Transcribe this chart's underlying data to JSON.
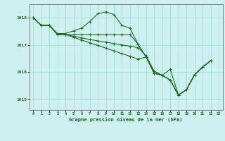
{
  "title": "Graphe pression niveau de la mer (hPa)",
  "background_color": "#cff0f0",
  "grid_color": "#99d9d9",
  "line_color": "#1a6b1a",
  "xlim": [
    -0.5,
    23.5
  ],
  "ylim": [
    1014.6,
    1018.5
  ],
  "yticks": [
    1015,
    1016,
    1017,
    1018
  ],
  "xticks": [
    0,
    1,
    2,
    3,
    4,
    5,
    6,
    7,
    8,
    9,
    10,
    11,
    12,
    13,
    14,
    15,
    16,
    17,
    18,
    19,
    20,
    21,
    22,
    23
  ],
  "xlabel": "Graphe pression niveau de la mer (hPa)",
  "s1_x": [
    0,
    1,
    2,
    3,
    4,
    5,
    6,
    7,
    8,
    9,
    10,
    11,
    12,
    13,
    14,
    15,
    16,
    17,
    18,
    19,
    20,
    21,
    22
  ],
  "s1_y": [
    1018.0,
    1017.72,
    1017.72,
    1017.42,
    1017.42,
    1017.52,
    1017.62,
    1017.86,
    1018.15,
    1018.22,
    1018.12,
    1017.72,
    1017.62,
    1017.02,
    1016.55,
    1015.95,
    1015.88,
    1016.1,
    1015.15,
    1015.35,
    1015.9,
    1016.18,
    1016.42
  ],
  "s2_x": [
    0,
    1,
    2,
    3,
    4,
    5,
    6,
    7,
    8,
    9,
    10,
    11,
    12,
    13,
    14,
    15,
    16,
    17,
    18,
    19,
    20,
    21,
    22
  ],
  "s2_y": [
    1018.0,
    1017.72,
    1017.72,
    1017.38,
    1017.38,
    1017.38,
    1017.38,
    1017.38,
    1017.38,
    1017.38,
    1017.38,
    1017.38,
    1017.38,
    1017.02,
    1016.55,
    1015.95,
    1015.88,
    1015.7,
    1015.15,
    1015.35,
    1015.9,
    1016.18,
    1016.42
  ],
  "s3_x": [
    0,
    1,
    2,
    3,
    4,
    5,
    6,
    7,
    8,
    9,
    10,
    11,
    12,
    13,
    14,
    15,
    16,
    17,
    18,
    19,
    20,
    21,
    22
  ],
  "s3_y": [
    1018.0,
    1017.72,
    1017.72,
    1017.38,
    1017.38,
    1017.32,
    1017.26,
    1017.2,
    1017.15,
    1017.1,
    1017.05,
    1017.0,
    1016.95,
    1016.9,
    1016.6,
    1016.02,
    1015.88,
    1015.7,
    1015.15,
    1015.35,
    1015.9,
    1016.18,
    1016.42
  ],
  "s4_x": [
    0,
    1,
    2,
    3,
    4,
    5,
    6,
    7,
    8,
    9,
    10,
    11,
    12,
    13,
    14,
    15,
    16,
    17,
    18,
    19,
    20,
    21,
    22
  ],
  "s4_y": [
    1018.0,
    1017.72,
    1017.72,
    1017.38,
    1017.38,
    1017.28,
    1017.18,
    1017.08,
    1016.98,
    1016.88,
    1016.78,
    1016.68,
    1016.58,
    1016.48,
    1016.55,
    1016.02,
    1015.88,
    1015.7,
    1015.15,
    1015.35,
    1015.9,
    1016.18,
    1016.42
  ]
}
